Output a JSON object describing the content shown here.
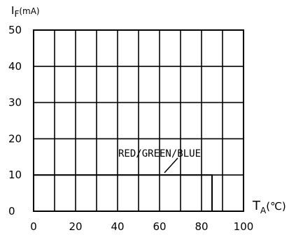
{
  "chart_data": {
    "type": "line",
    "x_label": {
      "main": "T",
      "sub": "A",
      "unit": "(℃)"
    },
    "y_label": {
      "main": "I",
      "sub": "F",
      "unit": "(mA)"
    },
    "xlim": [
      0,
      100
    ],
    "ylim": [
      0,
      50
    ],
    "x_ticks": [
      "0",
      "20",
      "40",
      "60",
      "80",
      "100"
    ],
    "y_ticks": [
      "0",
      "10",
      "20",
      "30",
      "40",
      "50"
    ],
    "grid": true,
    "series": [
      {
        "name": "RED/GREEN/BLUE",
        "x": [
          0,
          85,
          85
        ],
        "y": [
          10,
          10,
          0
        ]
      }
    ]
  }
}
